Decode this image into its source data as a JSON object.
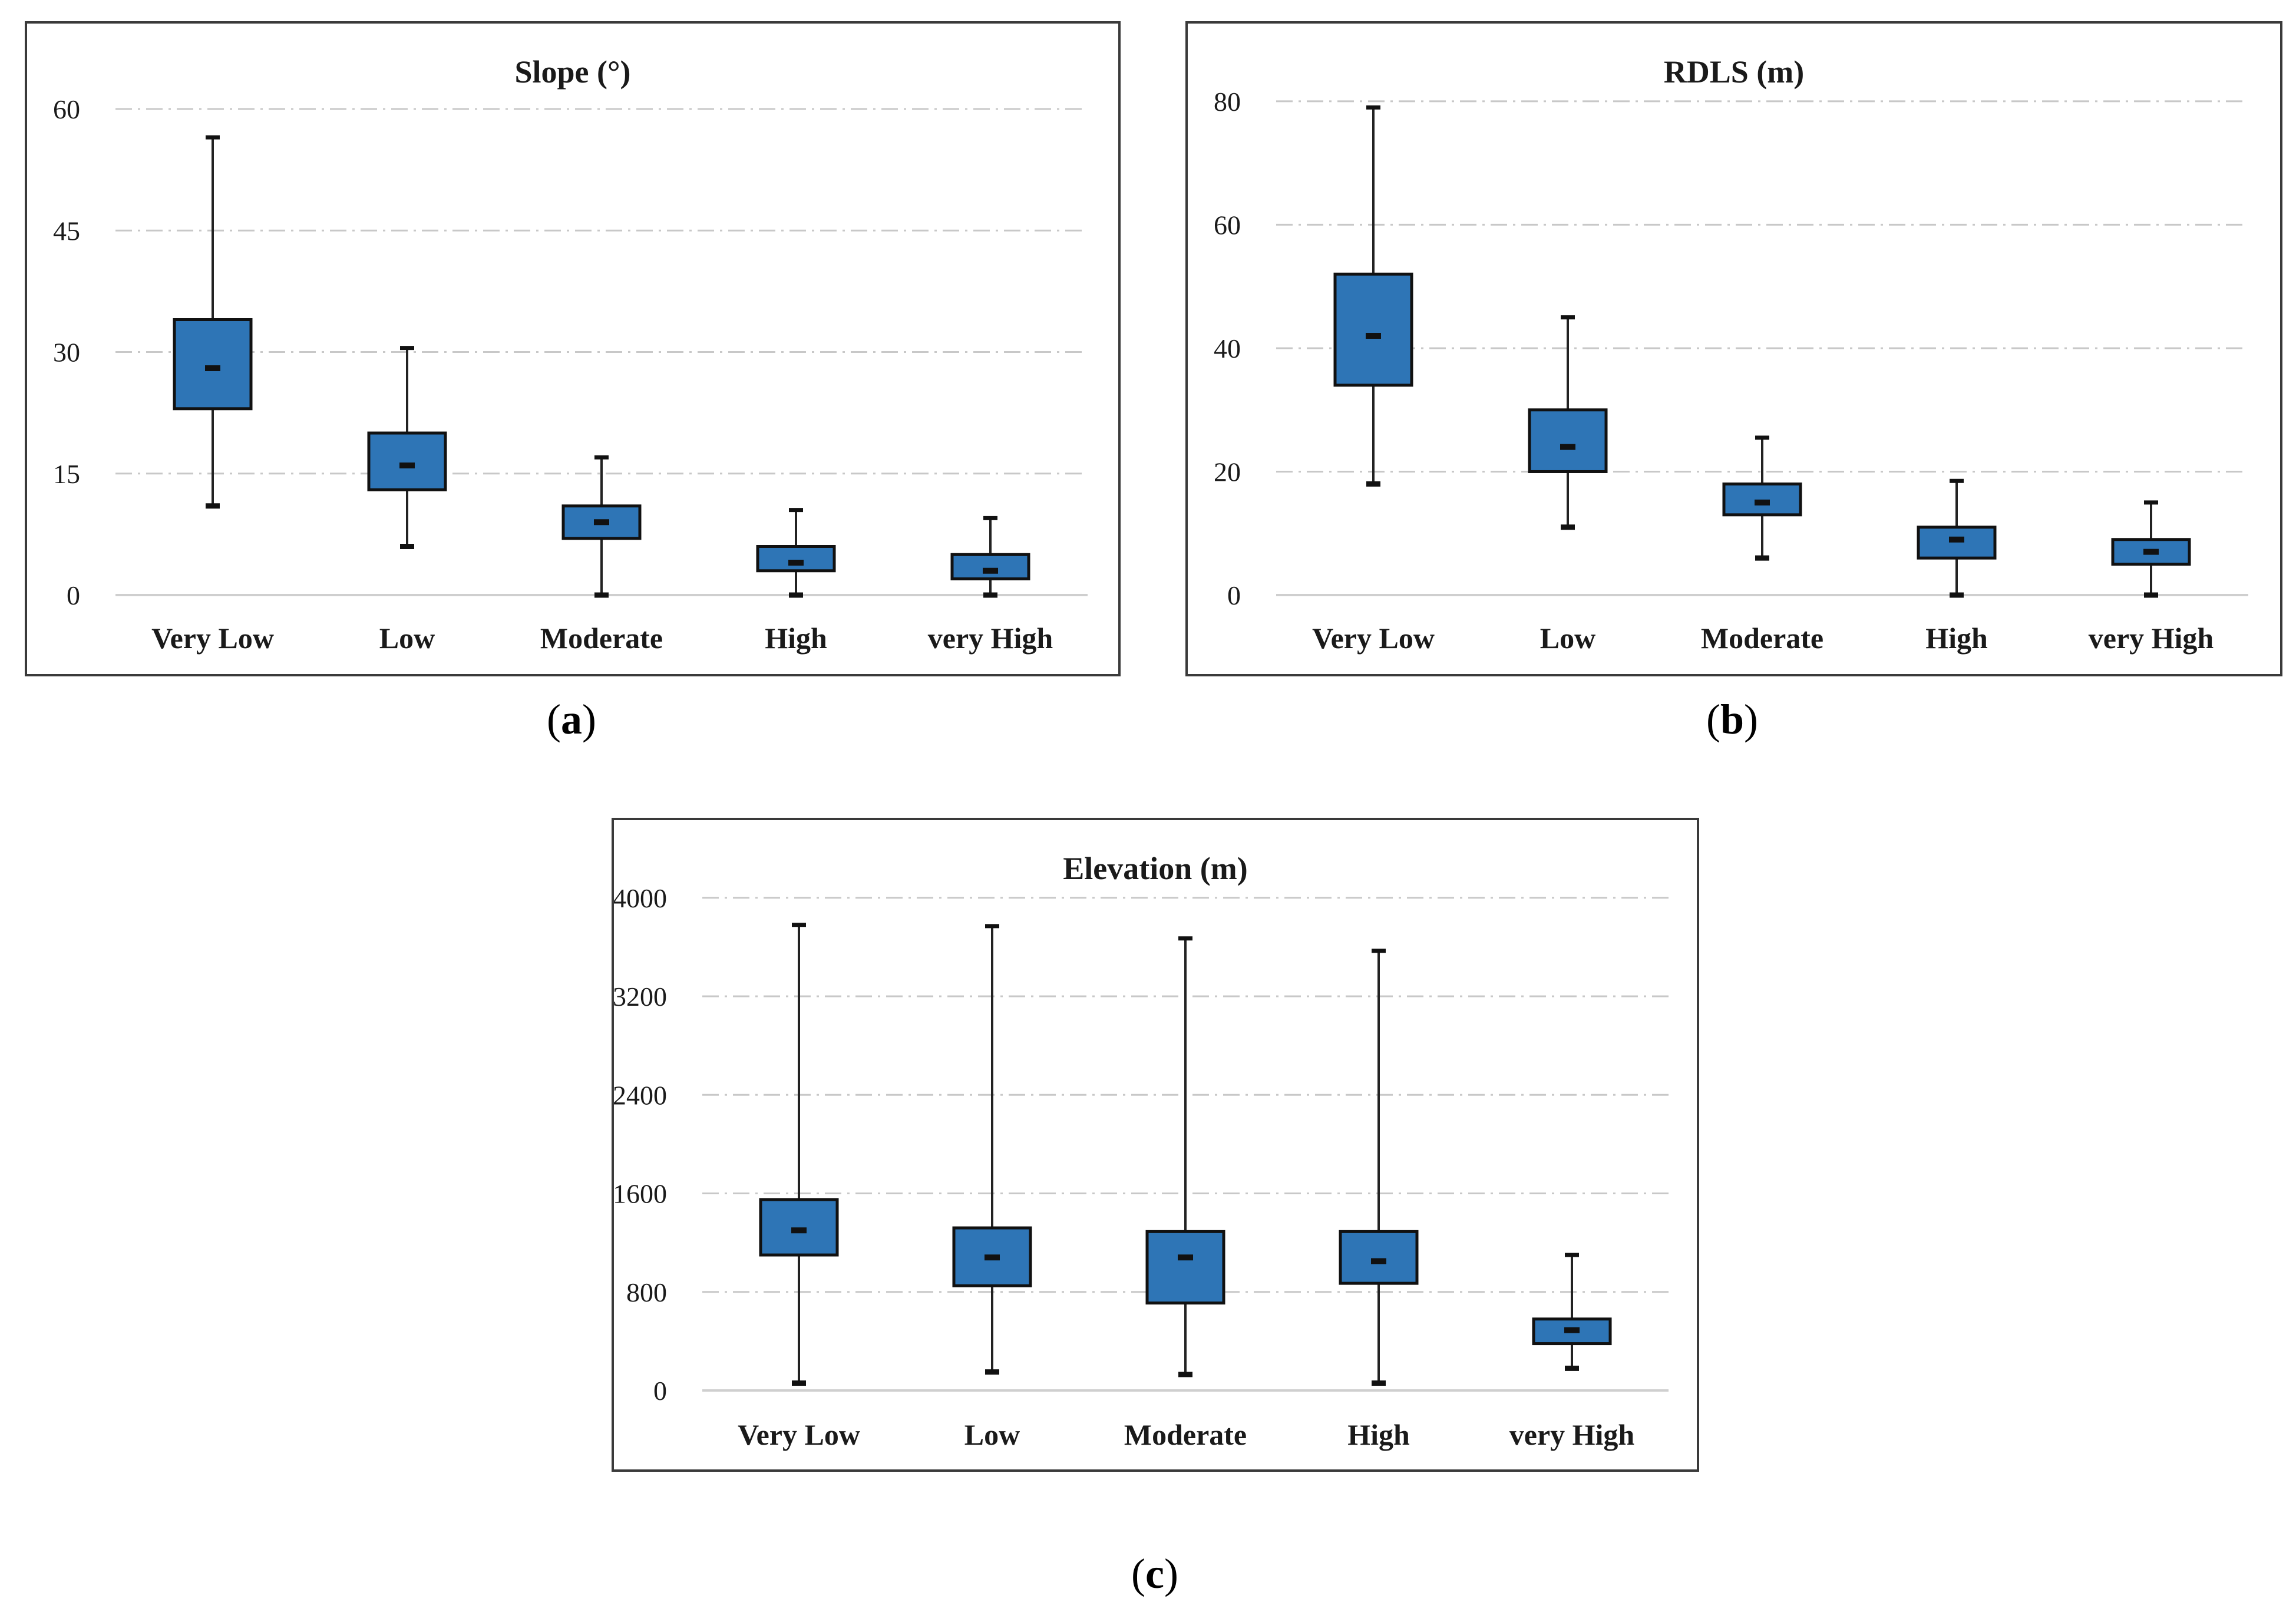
{
  "chart_data": [
    {
      "id": "a",
      "type": "box",
      "title": "Slope (°)",
      "panel_label": "a",
      "categories": [
        "Very Low",
        "Low",
        "Moderate",
        "High",
        "very High"
      ],
      "yticks": [
        0,
        15,
        30,
        45,
        60
      ],
      "ylim": [
        0,
        64
      ],
      "grid": true,
      "color": "#2e75b6",
      "boxes": [
        {
          "min": 11,
          "q1": 23,
          "median": 28,
          "q3": 34,
          "max": 56.5
        },
        {
          "min": 6,
          "q1": 13,
          "median": 16,
          "q3": 20,
          "max": 30.5
        },
        {
          "min": 0,
          "q1": 7,
          "median": 9,
          "q3": 11,
          "max": 17
        },
        {
          "min": 0,
          "q1": 3,
          "median": 4,
          "q3": 6,
          "max": 10.5
        },
        {
          "min": 0,
          "q1": 2,
          "median": 3,
          "q3": 5,
          "max": 9.5
        }
      ]
    },
    {
      "id": "b",
      "type": "box",
      "title": "RDLS (m)",
      "panel_label": "b",
      "categories": [
        "Very Low",
        "Low",
        "Moderate",
        "High",
        "very High"
      ],
      "yticks": [
        0,
        20,
        40,
        60,
        80
      ],
      "ylim": [
        0,
        84
      ],
      "grid": true,
      "color": "#2e75b6",
      "boxes": [
        {
          "min": 18,
          "q1": 34,
          "median": 42,
          "q3": 52,
          "max": 79
        },
        {
          "min": 11,
          "q1": 20,
          "median": 24,
          "q3": 30,
          "max": 45
        },
        {
          "min": 6,
          "q1": 13,
          "median": 15,
          "q3": 18,
          "max": 25.5
        },
        {
          "min": 0,
          "q1": 6,
          "median": 9,
          "q3": 11,
          "max": 18.5
        },
        {
          "min": 0,
          "q1": 5,
          "median": 7,
          "q3": 9,
          "max": 15
        }
      ]
    },
    {
      "id": "c",
      "type": "box",
      "title": "Elevation (m)",
      "panel_label": "c",
      "categories": [
        "Very Low",
        "Low",
        "Moderate",
        "High",
        "very High"
      ],
      "yticks": [
        0,
        800,
        1600,
        2400,
        3200,
        4000
      ],
      "ylim": [
        0,
        4200
      ],
      "grid": true,
      "color": "#2e75b6",
      "boxes": [
        {
          "min": 60,
          "q1": 1100,
          "median": 1300,
          "q3": 1550,
          "max": 3780
        },
        {
          "min": 150,
          "q1": 850,
          "median": 1080,
          "q3": 1320,
          "max": 3770
        },
        {
          "min": 130,
          "q1": 710,
          "median": 1080,
          "q3": 1290,
          "max": 3670
        },
        {
          "min": 60,
          "q1": 870,
          "median": 1050,
          "q3": 1290,
          "max": 3570
        },
        {
          "min": 180,
          "q1": 380,
          "median": 490,
          "q3": 580,
          "max": 1100
        }
      ]
    }
  ]
}
